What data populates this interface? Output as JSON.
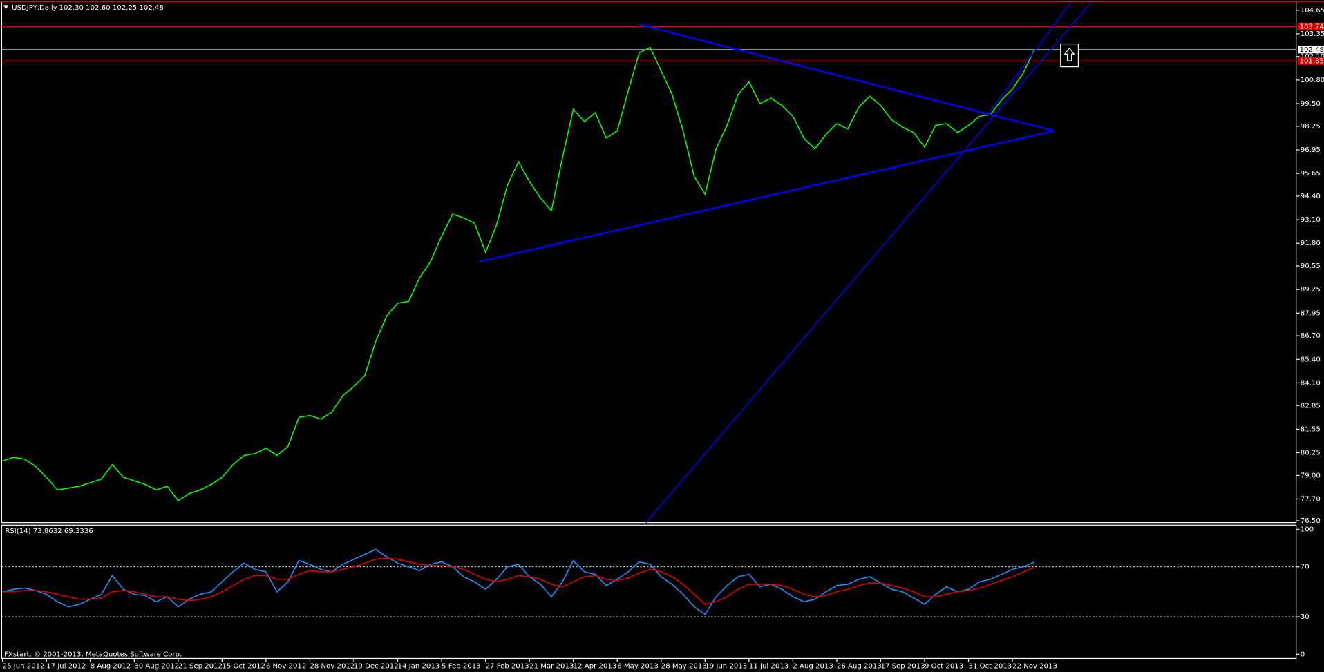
{
  "footer": "FXstart, © 2001-2013, MetaQuotes Software Corp.",
  "chart_data": [
    {
      "type": "line",
      "title": "USDJPY,Daily",
      "subtitle": "102.30 102.60 102.25 102.48",
      "color": "#00ff00",
      "categories": [
        "25 Jun 2012",
        null,
        null,
        null,
        "17 Jul 2012",
        null,
        null,
        null,
        "8 Aug 2012",
        null,
        null,
        null,
        "30 Aug 2012",
        null,
        null,
        null,
        "21 Sep 2012",
        null,
        null,
        null,
        "15 Oct 2012",
        null,
        null,
        null,
        "6 Nov 2012",
        null,
        null,
        null,
        "28 Nov 2012",
        null,
        null,
        null,
        "19 Dec 2012",
        null,
        null,
        null,
        "14 Jan 2013",
        null,
        null,
        null,
        "5 Feb 2013",
        null,
        null,
        null,
        "27 Feb 2013",
        null,
        null,
        null,
        "21 Mar 2013",
        null,
        null,
        null,
        "12 Apr 2013",
        null,
        null,
        null,
        "6 May 2013",
        null,
        null,
        null,
        "28 May 2013",
        null,
        null,
        null,
        "19 Jun 2013",
        null,
        null,
        null,
        "11 Jul 2013",
        null,
        null,
        null,
        "2 Aug 2013",
        null,
        null,
        null,
        "26 Aug 2013",
        null,
        null,
        null,
        "17 Sep 2013",
        null,
        null,
        null,
        "9 Oct 2013",
        null,
        null,
        null,
        "31 Oct 2013",
        null,
        null,
        null,
        "22 Nov 2013",
        null,
        null
      ],
      "values": [
        79.8,
        80.0,
        79.9,
        79.5,
        78.9,
        78.2,
        78.3,
        78.4,
        78.6,
        78.8,
        79.6,
        78.9,
        78.7,
        78.5,
        78.2,
        78.4,
        77.6,
        78.0,
        78.2,
        78.5,
        78.9,
        79.6,
        80.1,
        80.2,
        80.5,
        80.1,
        80.6,
        82.2,
        82.3,
        82.1,
        82.5,
        83.4,
        83.9,
        84.5,
        86.4,
        87.8,
        88.5,
        88.6,
        89.9,
        90.8,
        92.2,
        93.4,
        93.2,
        92.9,
        91.3,
        92.8,
        95.0,
        96.3,
        95.2,
        94.3,
        93.6,
        96.5,
        99.2,
        98.5,
        99.0,
        97.6,
        98.0,
        100.2,
        102.3,
        102.6,
        101.3,
        100.0,
        98.0,
        95.5,
        94.5,
        97.0,
        98.3,
        100.0,
        100.7,
        99.5,
        99.8,
        99.4,
        98.8,
        97.6,
        97.0,
        97.8,
        98.4,
        98.1,
        99.3,
        99.9,
        99.4,
        98.6,
        98.2,
        97.9,
        97.1,
        98.3,
        98.4,
        97.9,
        98.3,
        98.8,
        98.9,
        99.7,
        100.3,
        101.2,
        102.48
      ],
      "ylim": [
        76.4,
        105.12
      ],
      "yticks": [
        104.65,
        103.35,
        {
          "value": 102.1,
          "label": "102.10"
        },
        {
          "value": 100.8,
          "label": "100.80"
        },
        {
          "value": 99.5,
          "label": "99.50"
        },
        98.25,
        96.95,
        95.65,
        {
          "value": 94.4,
          "label": "94.40"
        },
        {
          "value": 93.1,
          "label": "93.10"
        },
        {
          "value": 91.8,
          "label": "91.80"
        },
        90.55,
        89.25,
        87.95,
        {
          "value": 86.7,
          "label": "86.70"
        },
        {
          "value": 85.4,
          "label": "85.40"
        },
        {
          "value": 84.1,
          "label": "84.10"
        },
        82.85,
        81.55,
        80.25,
        {
          "value": 79,
          "label": "79.00"
        },
        {
          "value": 77.7,
          "label": "77.70"
        },
        {
          "value": 76.5,
          "label": "76.50"
        }
      ],
      "price_levels": [
        {
          "value": 103.74,
          "color": "#e00000"
        },
        {
          "value": 101.85,
          "color": "#e00000"
        }
      ],
      "current_color": "#c0c0c0"
    },
    {
      "type": "line",
      "title": "RSI(14) 73.8632 69.3336",
      "series": [
        {
          "color": "#1e90ff",
          "values": [
            50,
            52,
            53,
            51,
            48,
            42,
            38,
            40,
            44,
            48,
            63,
            52,
            48,
            47,
            42,
            46,
            38,
            44,
            48,
            50,
            58,
            66,
            73,
            68,
            66,
            50,
            58,
            75,
            72,
            68,
            66,
            72,
            76,
            80,
            84,
            78,
            73,
            70,
            67,
            72,
            74,
            70,
            62,
            58,
            52,
            60,
            70,
            72,
            62,
            56,
            46,
            58,
            75,
            66,
            64,
            55,
            60,
            66,
            74,
            72,
            62,
            56,
            48,
            38,
            32,
            46,
            55,
            62,
            64,
            54,
            56,
            52,
            46,
            42,
            44,
            50,
            55,
            56,
            60,
            62,
            57,
            52,
            50,
            45,
            40,
            48,
            54,
            50,
            52,
            58,
            60,
            64,
            68,
            70,
            73.8632
          ]
        },
        {
          "color": "#e00000",
          "values": [
            50,
            50,
            51,
            51,
            50,
            48,
            46,
            44,
            44,
            45,
            50,
            51,
            50,
            48,
            46,
            46,
            44,
            43,
            44,
            46,
            50,
            55,
            60,
            63,
            63,
            60,
            60,
            64,
            67,
            66,
            66,
            68,
            70,
            73,
            76,
            77,
            76,
            74,
            72,
            71,
            71,
            70,
            68,
            64,
            60,
            58,
            60,
            63,
            62,
            60,
            56,
            54,
            58,
            62,
            63,
            60,
            59,
            61,
            65,
            68,
            66,
            62,
            56,
            48,
            40,
            42,
            46,
            52,
            56,
            56,
            56,
            55,
            52,
            48,
            46,
            47,
            50,
            52,
            55,
            57,
            57,
            55,
            53,
            50,
            46,
            46,
            48,
            50,
            51,
            53,
            56,
            59,
            62,
            66,
            69.3336
          ]
        }
      ],
      "ylim": [
        -3.4,
        103.4
      ],
      "yticks": [
        100,
        70,
        30,
        0
      ],
      "levels": [
        70,
        30
      ]
    }
  ]
}
